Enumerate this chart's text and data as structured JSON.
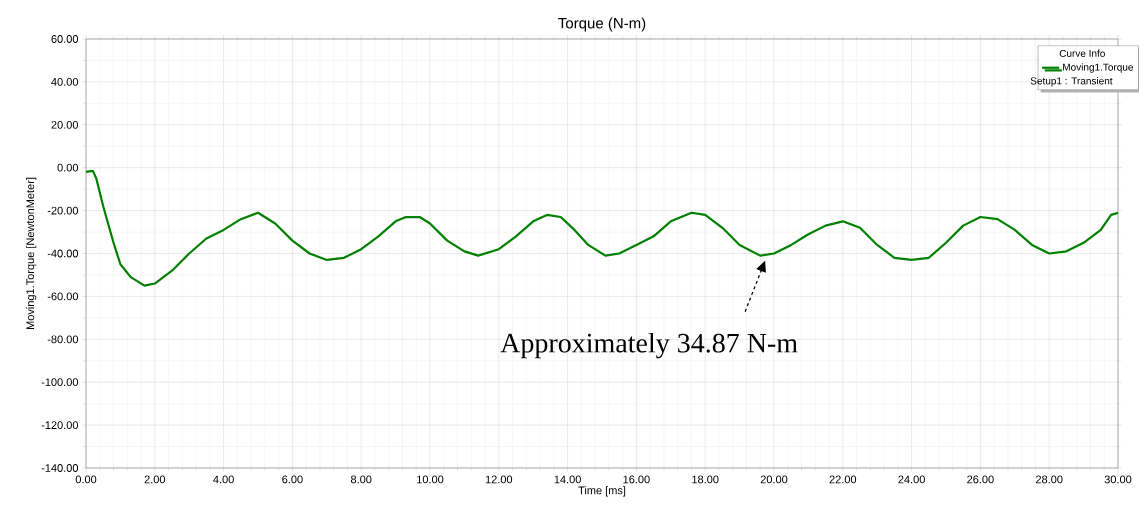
{
  "chart_data": {
    "type": "line",
    "title": "Torque (N-m)",
    "xlabel": "Time [ms]",
    "ylabel": "Moving1.Torque [NewtonMeter]",
    "legend_title": "Curve Info",
    "legend": "top right",
    "grid": true,
    "marker": "none",
    "line_style": "solid",
    "xlim": [
      0,
      30
    ],
    "ylim": [
      -140,
      60
    ],
    "xticks": [
      {
        "value": 0,
        "label": "0.00"
      },
      {
        "value": 2,
        "label": "2.00"
      },
      {
        "value": 4,
        "label": "4.00"
      },
      {
        "value": 6,
        "label": "6.00"
      },
      {
        "value": 8,
        "label": "8.00"
      },
      {
        "value": 10,
        "label": "10.00"
      },
      {
        "value": 12,
        "label": "12.00"
      },
      {
        "value": 14,
        "label": "14.00"
      },
      {
        "value": 16,
        "label": "16.00"
      },
      {
        "value": 18,
        "label": "18.00"
      },
      {
        "value": 20,
        "label": "20.00"
      },
      {
        "value": 22,
        "label": "22.00"
      },
      {
        "value": 24,
        "label": "24.00"
      },
      {
        "value": 26,
        "label": "26.00"
      },
      {
        "value": 28,
        "label": "28.00"
      },
      {
        "value": 30,
        "label": "30.00"
      }
    ],
    "yticks": [
      {
        "value": -140,
        "label": "-140.00"
      },
      {
        "value": -120,
        "label": "-120.00"
      },
      {
        "value": -100,
        "label": "-100.00"
      },
      {
        "value": -80,
        "label": "-80.00"
      },
      {
        "value": -60,
        "label": "-60.00"
      },
      {
        "value": -40,
        "label": "-40.00"
      },
      {
        "value": -20,
        "label": "-20.00"
      },
      {
        "value": 0,
        "label": "0.00"
      },
      {
        "value": 20,
        "label": "20.00"
      },
      {
        "value": 40,
        "label": "40.00"
      },
      {
        "value": 60,
        "label": "60.00"
      }
    ],
    "series": [
      {
        "name": "Moving1.Torque",
        "color": "#008000",
        "x": [
          0,
          0.2,
          0.3,
          0.5,
          0.8,
          1.0,
          1.3,
          1.7,
          2.0,
          2.5,
          3.0,
          3.5,
          4.0,
          4.5,
          5.0,
          5.5,
          6.0,
          6.5,
          7.0,
          7.5,
          8.0,
          8.5,
          9.0,
          9.3,
          9.7,
          10.0,
          10.5,
          11.0,
          11.4,
          12.0,
          12.5,
          13.0,
          13.4,
          13.8,
          14.2,
          14.6,
          15.1,
          15.5,
          16.0,
          16.5,
          17.0,
          17.6,
          18.0,
          18.5,
          19.0,
          19.6,
          20.0,
          20.5,
          21.0,
          21.5,
          22.0,
          22.5,
          23.0,
          23.5,
          24.0,
          24.5,
          25.0,
          25.5,
          26.0,
          26.5,
          27.0,
          27.5,
          28.0,
          28.5,
          29.0,
          29.5,
          29.8,
          30
        ],
        "values": [
          -2,
          -1.5,
          -5,
          -18,
          -35,
          -45,
          -51,
          -55,
          -54,
          -48,
          -40,
          -33,
          -29,
          -24,
          -21,
          -26,
          -34,
          -40,
          -43,
          -42,
          -38,
          -32,
          -25,
          -23,
          -23,
          -26,
          -34,
          -39,
          -41,
          -38,
          -32,
          -25,
          -22,
          -23,
          -29,
          -36,
          -41,
          -40,
          -36,
          -32,
          -25,
          -21,
          -22,
          -28,
          -36,
          -41,
          -40,
          -36,
          -31,
          -27,
          -25,
          -28,
          -36,
          -42,
          -43,
          -42,
          -35,
          -27,
          -23,
          -24,
          -29,
          -36,
          -40,
          -39,
          -35,
          -29,
          -22,
          -21
        ]
      }
    ],
    "annotations": [
      "Setup1 : Transient",
      {
        "text": "Approximately 34.87 N-m",
        "x": 19.8,
        "y": -41
      }
    ]
  }
}
